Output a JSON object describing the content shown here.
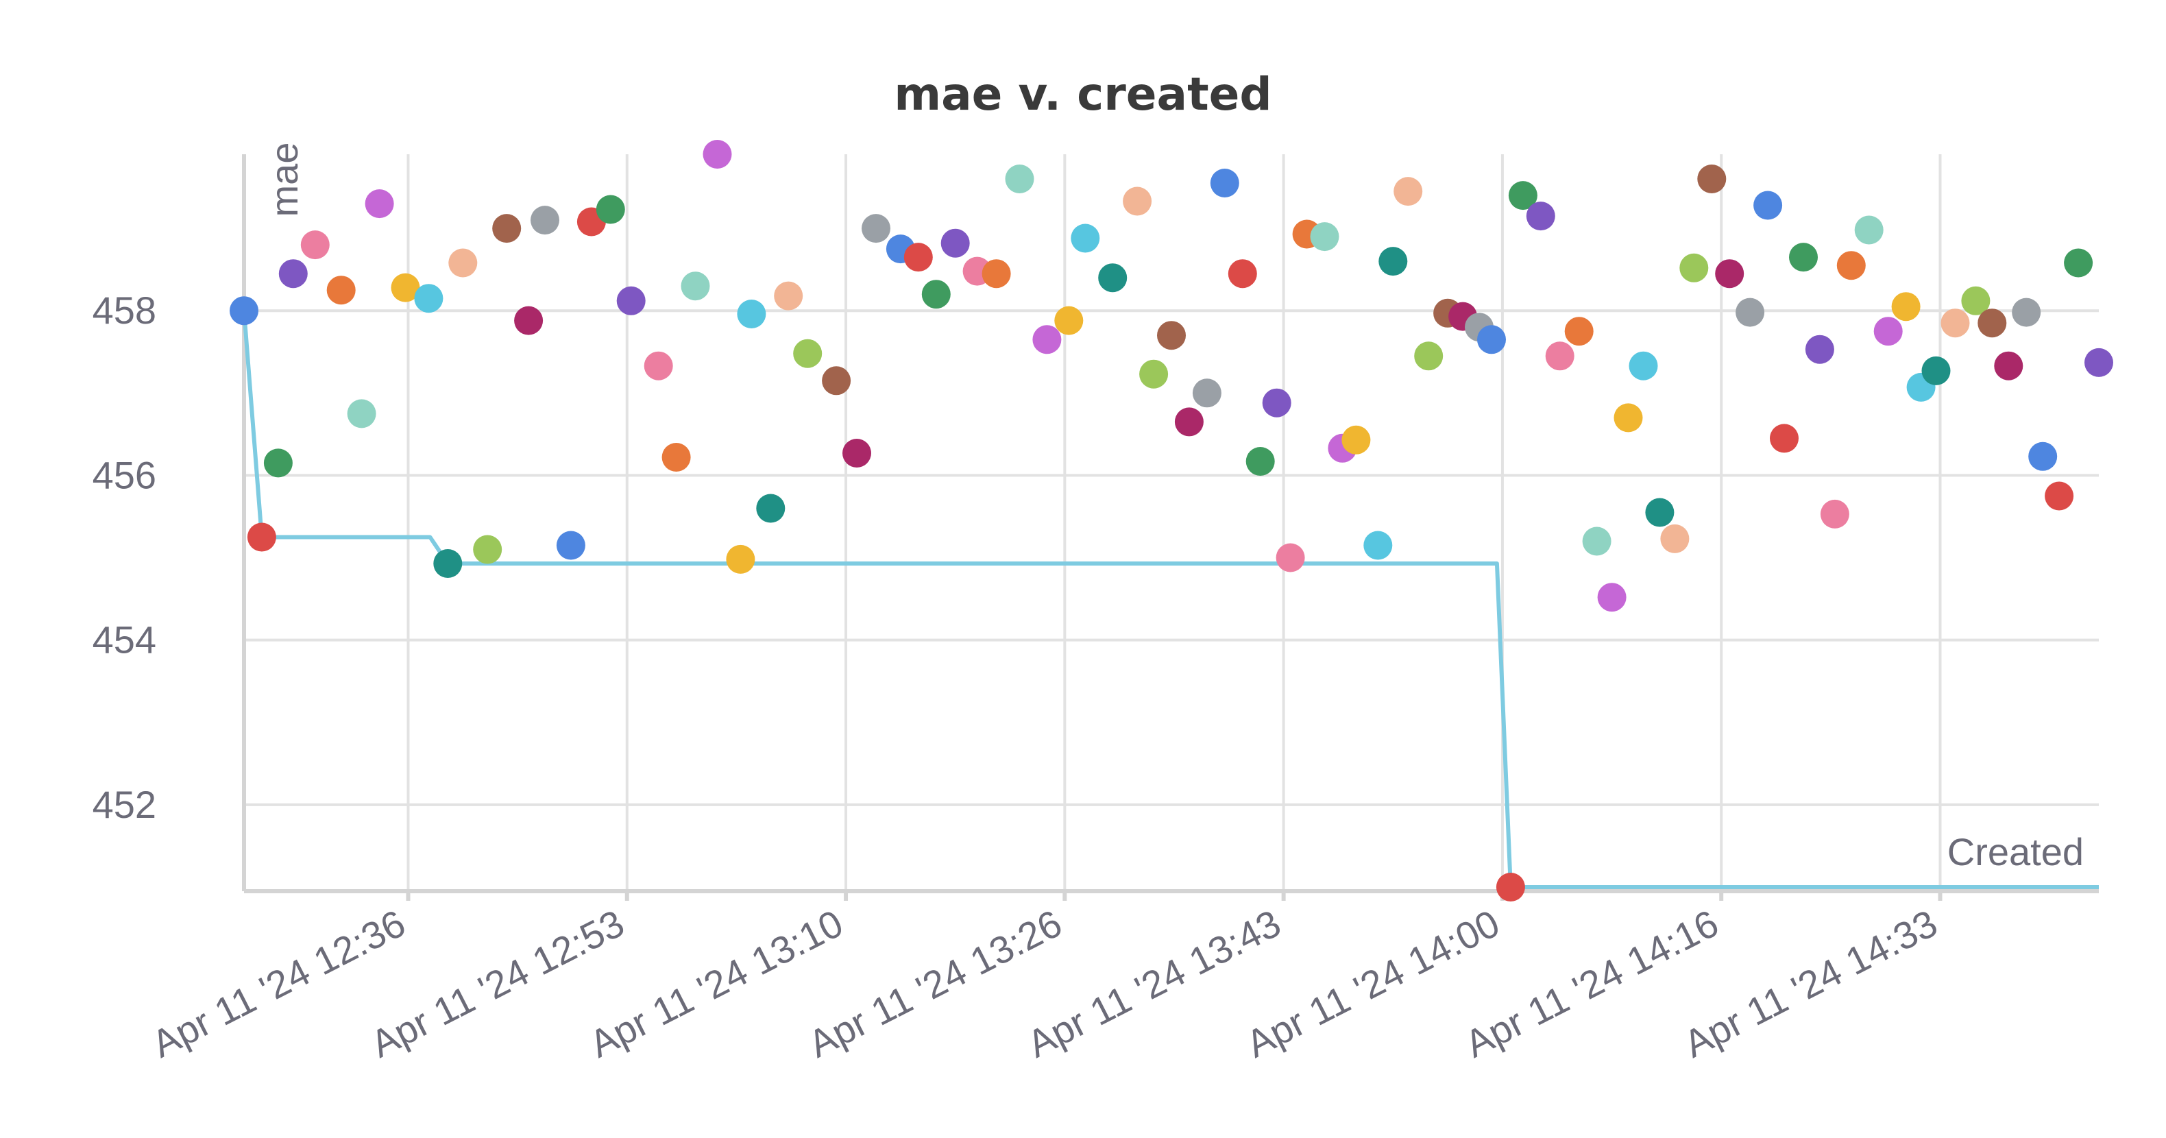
{
  "chart_data": {
    "type": "scatter",
    "title": "mae v. created",
    "ylabel": "mae",
    "xlabel": "Created",
    "ylim": [
      450.95,
      459.9
    ],
    "xlim_minutes": [
      0,
      135.6
    ],
    "x_ticks": [
      {
        "label": "Apr 11 '24 12:36",
        "minute": 12.0
      },
      {
        "label": "Apr 11 '24 12:53",
        "minute": 28.0
      },
      {
        "label": "Apr 11 '24 13:10",
        "minute": 44.0
      },
      {
        "label": "Apr 11 '24 13:26",
        "minute": 60.0
      },
      {
        "label": "Apr 11 '24 13:43",
        "minute": 76.0
      },
      {
        "label": "Apr 11 '24 14:00",
        "minute": 92.0
      },
      {
        "label": "Apr 11 '24 14:16",
        "minute": 108.0
      },
      {
        "label": "Apr 11 '24 14:33",
        "minute": 124.0
      }
    ],
    "y_ticks": [
      452,
      454,
      456,
      458
    ],
    "grid": true,
    "colors": {
      "line": "#7ecbe1",
      "grid": "#e2e2e2",
      "axis": "#d4d4d4",
      "text": "#6b6b78",
      "title": "#3a3a3a"
    },
    "best_so_far_line": [
      [
        0.0,
        458.0
      ],
      [
        1.3,
        455.25
      ],
      [
        13.6,
        455.25
      ],
      [
        14.9,
        454.93
      ],
      [
        91.6,
        454.93
      ],
      [
        92.6,
        451.0
      ],
      [
        135.6,
        451.0
      ]
    ],
    "points": [
      {
        "x": 0.0,
        "y": 458.0,
        "color": "#4e86e0"
      },
      {
        "x": 1.3,
        "y": 455.25,
        "color": "#dc4a47"
      },
      {
        "x": 2.5,
        "y": 456.15,
        "color": "#3f9b5f"
      },
      {
        "x": 3.6,
        "y": 458.45,
        "color": "#7e57c2"
      },
      {
        "x": 5.2,
        "y": 458.8,
        "color": "#ec7ea0"
      },
      {
        "x": 7.1,
        "y": 458.25,
        "color": "#e8783a"
      },
      {
        "x": 8.6,
        "y": 456.75,
        "color": "#8fd3c2"
      },
      {
        "x": 9.9,
        "y": 459.3,
        "color": "#c567d6"
      },
      {
        "x": 11.8,
        "y": 458.28,
        "color": "#f0b630"
      },
      {
        "x": 13.5,
        "y": 458.15,
        "color": "#57c6e0"
      },
      {
        "x": 14.9,
        "y": 454.93,
        "color": "#1f9085"
      },
      {
        "x": 16.0,
        "y": 458.58,
        "color": "#f2b595"
      },
      {
        "x": 17.8,
        "y": 455.1,
        "color": "#9bc75a"
      },
      {
        "x": 19.2,
        "y": 459.0,
        "color": "#a1634c"
      },
      {
        "x": 20.8,
        "y": 457.88,
        "color": "#aa2868"
      },
      {
        "x": 22.0,
        "y": 459.1,
        "color": "#9aa0a6"
      },
      {
        "x": 23.9,
        "y": 455.15,
        "color": "#4e86e0"
      },
      {
        "x": 25.4,
        "y": 459.08,
        "color": "#dc4a47"
      },
      {
        "x": 26.8,
        "y": 459.23,
        "color": "#3f9b5f"
      },
      {
        "x": 28.3,
        "y": 458.12,
        "color": "#7e57c2"
      },
      {
        "x": 30.3,
        "y": 457.33,
        "color": "#ec7ea0"
      },
      {
        "x": 31.6,
        "y": 456.22,
        "color": "#e8783a"
      },
      {
        "x": 33.0,
        "y": 458.3,
        "color": "#8fd3c2"
      },
      {
        "x": 34.6,
        "y": 459.9,
        "color": "#c567d6"
      },
      {
        "x": 36.3,
        "y": 454.98,
        "color": "#f0b630"
      },
      {
        "x": 37.1,
        "y": 457.96,
        "color": "#57c6e0"
      },
      {
        "x": 38.5,
        "y": 455.6,
        "color": "#1f9085"
      },
      {
        "x": 39.8,
        "y": 458.18,
        "color": "#f2b595"
      },
      {
        "x": 41.2,
        "y": 457.48,
        "color": "#9bc75a"
      },
      {
        "x": 43.3,
        "y": 457.15,
        "color": "#a1634c"
      },
      {
        "x": 44.8,
        "y": 456.27,
        "color": "#aa2868"
      },
      {
        "x": 46.2,
        "y": 459.0,
        "color": "#9aa0a6"
      },
      {
        "x": 48.0,
        "y": 458.75,
        "color": "#4e86e0"
      },
      {
        "x": 49.3,
        "y": 458.65,
        "color": "#dc4a47"
      },
      {
        "x": 50.6,
        "y": 458.2,
        "color": "#3f9b5f"
      },
      {
        "x": 52.0,
        "y": 458.82,
        "color": "#7e57c2"
      },
      {
        "x": 53.6,
        "y": 458.48,
        "color": "#ec7ea0"
      },
      {
        "x": 55.0,
        "y": 458.45,
        "color": "#e8783a"
      },
      {
        "x": 56.7,
        "y": 459.6,
        "color": "#8fd3c2"
      },
      {
        "x": 58.7,
        "y": 457.65,
        "color": "#c567d6"
      },
      {
        "x": 60.3,
        "y": 457.88,
        "color": "#f0b630"
      },
      {
        "x": 61.5,
        "y": 458.88,
        "color": "#57c6e0"
      },
      {
        "x": 63.5,
        "y": 458.4,
        "color": "#1f9085"
      },
      {
        "x": 65.3,
        "y": 459.33,
        "color": "#f2b595"
      },
      {
        "x": 66.5,
        "y": 457.23,
        "color": "#9bc75a"
      },
      {
        "x": 67.8,
        "y": 457.7,
        "color": "#a1634c"
      },
      {
        "x": 69.1,
        "y": 456.65,
        "color": "#aa2868"
      },
      {
        "x": 70.4,
        "y": 457.0,
        "color": "#9aa0a6"
      },
      {
        "x": 71.7,
        "y": 459.55,
        "color": "#4e86e0"
      },
      {
        "x": 73.0,
        "y": 458.45,
        "color": "#dc4a47"
      },
      {
        "x": 74.3,
        "y": 456.17,
        "color": "#3f9b5f"
      },
      {
        "x": 75.5,
        "y": 456.88,
        "color": "#7e57c2"
      },
      {
        "x": 76.5,
        "y": 455.0,
        "color": "#ec7ea0"
      },
      {
        "x": 77.7,
        "y": 458.93,
        "color": "#e8783a"
      },
      {
        "x": 79.0,
        "y": 458.9,
        "color": "#8fd3c2"
      },
      {
        "x": 80.3,
        "y": 456.33,
        "color": "#c567d6"
      },
      {
        "x": 81.3,
        "y": 456.43,
        "color": "#f0b630"
      },
      {
        "x": 82.9,
        "y": 455.15,
        "color": "#57c6e0"
      },
      {
        "x": 84.0,
        "y": 458.6,
        "color": "#1f9085"
      },
      {
        "x": 85.1,
        "y": 459.45,
        "color": "#f2b595"
      },
      {
        "x": 86.6,
        "y": 457.45,
        "color": "#9bc75a"
      },
      {
        "x": 88.0,
        "y": 457.97,
        "color": "#a1634c"
      },
      {
        "x": 89.1,
        "y": 457.93,
        "color": "#aa2868"
      },
      {
        "x": 90.3,
        "y": 457.8,
        "color": "#9aa0a6"
      },
      {
        "x": 91.2,
        "y": 457.65,
        "color": "#4e86e0"
      },
      {
        "x": 92.6,
        "y": 451.0,
        "color": "#dc4a47"
      },
      {
        "x": 93.5,
        "y": 459.4,
        "color": "#3f9b5f"
      },
      {
        "x": 94.8,
        "y": 459.15,
        "color": "#7e57c2"
      },
      {
        "x": 96.2,
        "y": 457.45,
        "color": "#ec7ea0"
      },
      {
        "x": 97.6,
        "y": 457.75,
        "color": "#e8783a"
      },
      {
        "x": 98.9,
        "y": 455.2,
        "color": "#8fd3c2"
      },
      {
        "x": 100.0,
        "y": 454.52,
        "color": "#c567d6"
      },
      {
        "x": 101.2,
        "y": 456.7,
        "color": "#f0b630"
      },
      {
        "x": 102.3,
        "y": 457.33,
        "color": "#57c6e0"
      },
      {
        "x": 103.5,
        "y": 455.55,
        "color": "#1f9085"
      },
      {
        "x": 104.6,
        "y": 455.23,
        "color": "#f2b595"
      },
      {
        "x": 106.0,
        "y": 458.52,
        "color": "#9bc75a"
      },
      {
        "x": 107.3,
        "y": 459.6,
        "color": "#a1634c"
      },
      {
        "x": 108.6,
        "y": 458.45,
        "color": "#aa2868"
      },
      {
        "x": 110.1,
        "y": 457.98,
        "color": "#9aa0a6"
      },
      {
        "x": 111.4,
        "y": 459.28,
        "color": "#4e86e0"
      },
      {
        "x": 112.6,
        "y": 456.45,
        "color": "#dc4a47"
      },
      {
        "x": 114.0,
        "y": 458.65,
        "color": "#3f9b5f"
      },
      {
        "x": 115.2,
        "y": 457.53,
        "color": "#7e57c2"
      },
      {
        "x": 116.3,
        "y": 455.53,
        "color": "#ec7ea0"
      },
      {
        "x": 117.5,
        "y": 458.55,
        "color": "#e8783a"
      },
      {
        "x": 118.8,
        "y": 458.98,
        "color": "#8fd3c2"
      },
      {
        "x": 120.2,
        "y": 457.75,
        "color": "#c567d6"
      },
      {
        "x": 121.5,
        "y": 458.05,
        "color": "#f0b630"
      },
      {
        "x": 122.6,
        "y": 457.07,
        "color": "#57c6e0"
      },
      {
        "x": 123.7,
        "y": 457.27,
        "color": "#1f9085"
      },
      {
        "x": 125.1,
        "y": 457.85,
        "color": "#f2b595"
      },
      {
        "x": 126.6,
        "y": 458.12,
        "color": "#9bc75a"
      },
      {
        "x": 127.8,
        "y": 457.85,
        "color": "#a1634c"
      },
      {
        "x": 129.0,
        "y": 457.33,
        "color": "#aa2868"
      },
      {
        "x": 130.3,
        "y": 457.98,
        "color": "#9aa0a6"
      },
      {
        "x": 131.5,
        "y": 456.23,
        "color": "#4e86e0"
      },
      {
        "x": 132.7,
        "y": 455.75,
        "color": "#dc4a47"
      },
      {
        "x": 134.1,
        "y": 458.58,
        "color": "#3f9b5f"
      },
      {
        "x": 135.6,
        "y": 457.37,
        "color": "#7e57c2"
      }
    ]
  }
}
